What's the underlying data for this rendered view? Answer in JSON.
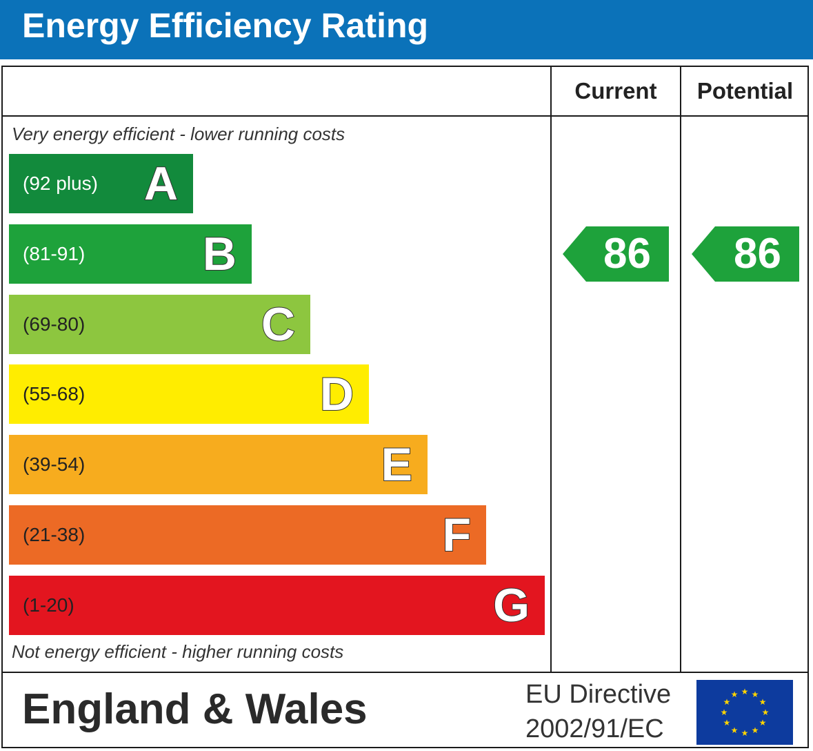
{
  "header": {
    "title": "Energy Efficiency Rating",
    "bg_color": "#0b72b9"
  },
  "columns": {
    "current_label": "Current",
    "potential_label": "Potential"
  },
  "notes": {
    "top": "Very energy efficient - lower running costs",
    "bottom": "Not energy efficient - higher running costs"
  },
  "chart_data": {
    "type": "bar",
    "bands": [
      {
        "letter": "A",
        "range": "(92 plus)",
        "color": "#128a3c",
        "range_color": "#ffffff"
      },
      {
        "letter": "B",
        "range": "(81-91)",
        "color": "#1ea23b",
        "range_color": "#ffffff"
      },
      {
        "letter": "C",
        "range": "(69-80)",
        "color": "#8dc63f",
        "range_color": "#222222"
      },
      {
        "letter": "D",
        "range": "(55-68)",
        "color": "#ffed00",
        "range_color": "#222222"
      },
      {
        "letter": "E",
        "range": "(39-54)",
        "color": "#f7ac1e",
        "range_color": "#222222"
      },
      {
        "letter": "F",
        "range": "(21-38)",
        "color": "#ec6a25",
        "range_color": "#222222"
      },
      {
        "letter": "G",
        "range": "(1-20)",
        "color": "#e3151f",
        "range_color": "#222222"
      }
    ],
    "current": {
      "value": "86",
      "band": "B",
      "color": "#1ea23b"
    },
    "potential": {
      "value": "86",
      "band": "B",
      "color": "#1ea23b"
    }
  },
  "footer": {
    "region": "England & Wales",
    "directive_line1": "EU Directive",
    "directive_line2": "2002/91/EC",
    "flag_icon": "eu-flag-icon"
  }
}
